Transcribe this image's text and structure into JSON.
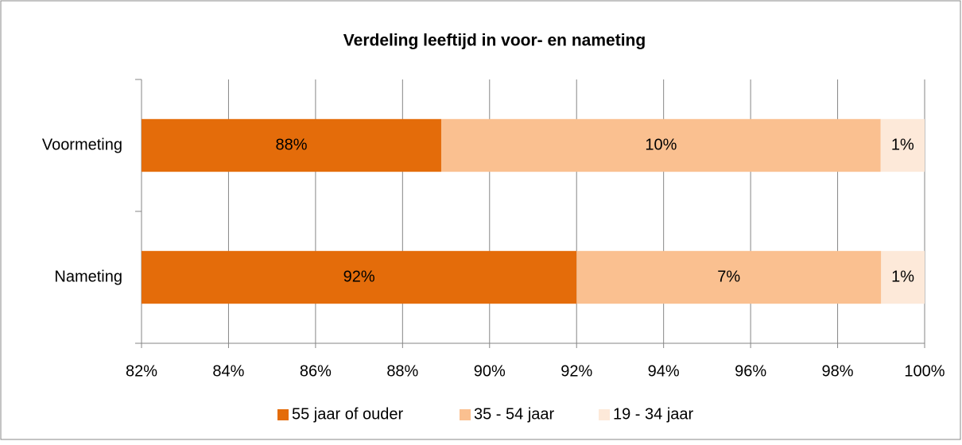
{
  "chart_data": {
    "type": "bar",
    "orientation": "horizontal",
    "stacking": "percent",
    "title": "Verdeling leeftijd in voor- en nameting",
    "categories": [
      "Voormeting",
      "Nameting"
    ],
    "series": [
      {
        "name": "55 jaar of ouder",
        "color": "#e46c0a",
        "values": [
          88,
          92
        ],
        "value_labels": [
          "88%",
          "92%"
        ]
      },
      {
        "name": "35 - 54 jaar",
        "color": "#fac090",
        "values": [
          10,
          7
        ],
        "value_labels": [
          "10%",
          "7%"
        ]
      },
      {
        "name": "19 - 34 jaar",
        "color": "#fde9d9",
        "values": [
          1,
          1
        ],
        "value_labels": [
          "1%",
          "1%"
        ]
      }
    ],
    "xlim": [
      82,
      100
    ],
    "xticks": [
      {
        "value": 82,
        "label": "82%"
      },
      {
        "value": 84,
        "label": "84%"
      },
      {
        "value": 86,
        "label": "86%"
      },
      {
        "value": 88,
        "label": "88%"
      },
      {
        "value": 90,
        "label": "90%"
      },
      {
        "value": 92,
        "label": "92%"
      },
      {
        "value": 94,
        "label": "94%"
      },
      {
        "value": 96,
        "label": "96%"
      },
      {
        "value": 98,
        "label": "98%"
      },
      {
        "value": 100,
        "label": "100%"
      }
    ],
    "grid": true,
    "legend": "bottom"
  }
}
